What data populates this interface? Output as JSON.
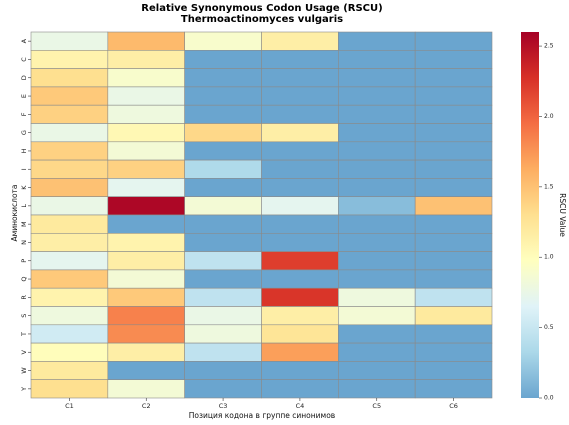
{
  "chart_data": {
    "type": "heatmap",
    "title": "Relative Synonymous Codon Usage (RSCU)",
    "subtitle": "Thermoactinomyces vulgaris",
    "xlabel": "Позиция кодона в группе синонимов",
    "ylabel": "Аминокислота",
    "colorbar_label": "RSCU Value",
    "x_categories": [
      "C1",
      "C2",
      "C3",
      "C4",
      "C5",
      "C6"
    ],
    "y_categories": [
      "A",
      "C",
      "D",
      "E",
      "F",
      "G",
      "H",
      "I",
      "K",
      "L",
      "M",
      "N",
      "P",
      "Q",
      "R",
      "S",
      "T",
      "V",
      "W",
      "Y"
    ],
    "values": [
      [
        0.75,
        1.55,
        0.9,
        1.15,
        0,
        0
      ],
      [
        1.1,
        1.15,
        0,
        0,
        0,
        0
      ],
      [
        1.3,
        0.9,
        0,
        0,
        0,
        0
      ],
      [
        1.45,
        0.75,
        0,
        0,
        0,
        0
      ],
      [
        1.4,
        0.8,
        0,
        0,
        0,
        0
      ],
      [
        0.75,
        1.05,
        1.35,
        1.15,
        0,
        0
      ],
      [
        1.4,
        0.85,
        0,
        0,
        0,
        0
      ],
      [
        1.35,
        1.4,
        0.35,
        0,
        0,
        0
      ],
      [
        1.5,
        0.7,
        0,
        0,
        0,
        0
      ],
      [
        0.75,
        2.55,
        0.85,
        0.7,
        0.15,
        1.5
      ],
      [
        1.2,
        0,
        0,
        0,
        0,
        0
      ],
      [
        1.15,
        1.1,
        0,
        0,
        0,
        0
      ],
      [
        0.7,
        1.15,
        0.45,
        2.2,
        0,
        0
      ],
      [
        1.45,
        0.85,
        0,
        0,
        0,
        0
      ],
      [
        1.1,
        1.45,
        0.45,
        2.25,
        0.8,
        0.45
      ],
      [
        0.8,
        1.85,
        0.75,
        1.15,
        0.85,
        1.2
      ],
      [
        0.55,
        1.8,
        0.8,
        1.25,
        0,
        0
      ],
      [
        1.0,
        1.15,
        0.45,
        1.7,
        0,
        0
      ],
      [
        1.2,
        0,
        0,
        0,
        0,
        0
      ],
      [
        1.3,
        0.85,
        0,
        0,
        0,
        0
      ]
    ],
    "color_range": [
      0.0,
      2.6
    ],
    "colorbar_ticks": [
      "0.0",
      "0.5",
      "1.0",
      "1.5",
      "2.0",
      "2.5"
    ],
    "colormap": [
      "#6aa5cf",
      "#abd8e9",
      "#e0f3f8",
      "#ffffbf",
      "#fee090",
      "#fdae61",
      "#f46d43",
      "#d73027",
      "#a50026"
    ],
    "cell_border_color": "#8a8a8a"
  }
}
